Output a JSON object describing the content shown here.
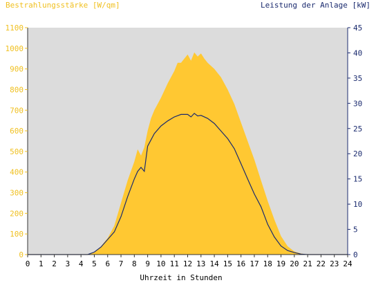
{
  "colors": {
    "irradiance": "#ffc832",
    "power": "#1a2a6e",
    "plot_background": "#dcdcdc",
    "left_axis": "#f0c020",
    "right_axis": "#1a2a6e"
  },
  "chart_data": {
    "type": "area",
    "title_left": "Bestrahlungsstärke [W/qm]",
    "title_right": "Leistung der Anlage [kW]",
    "xlabel": "Uhrzeit in Stunden",
    "xlim": [
      0,
      24
    ],
    "ylim_left": [
      0,
      1100
    ],
    "ylim_right": [
      0,
      45
    ],
    "x_ticks": [
      "0",
      "1",
      "2",
      "3",
      "4",
      "5",
      "6",
      "7",
      "8",
      "9",
      "10",
      "11",
      "12",
      "13",
      "14",
      "15",
      "16",
      "17",
      "18",
      "19",
      "20",
      "21",
      "22",
      "23",
      "24"
    ],
    "y_ticks_left": [
      "0",
      "100",
      "200",
      "300",
      "400",
      "500",
      "600",
      "700",
      "800",
      "900",
      "1000",
      "1100"
    ],
    "y_ticks_right": [
      "0",
      "5",
      "10",
      "15",
      "20",
      "25",
      "30",
      "35",
      "40",
      "45"
    ],
    "grid": false,
    "series": [
      {
        "name": "Bestrahlungsstärke",
        "axis": "left",
        "style": "filled-area",
        "x": [
          0,
          4.5,
          5,
          5.5,
          6,
          6.5,
          7,
          7.5,
          8,
          8.25,
          8.5,
          8.75,
          9,
          9.25,
          9.5,
          10,
          10.5,
          11,
          11.25,
          11.5,
          11.75,
          12,
          12.25,
          12.5,
          12.75,
          13,
          13.25,
          13.5,
          14,
          14.5,
          15,
          15.5,
          16,
          16.5,
          17,
          17.5,
          18,
          18.5,
          19,
          19.5,
          20,
          20.5,
          21,
          24
        ],
        "y": [
          0,
          0,
          10,
          40,
          80,
          140,
          250,
          360,
          450,
          510,
          480,
          520,
          600,
          660,
          700,
          760,
          830,
          890,
          930,
          930,
          950,
          970,
          940,
          980,
          960,
          975,
          950,
          930,
          900,
          860,
          800,
          730,
          640,
          550,
          460,
          360,
          260,
          170,
          90,
          40,
          15,
          5,
          0,
          0
        ]
      },
      {
        "name": "Leistung der Anlage",
        "axis": "right",
        "style": "line",
        "x": [
          0,
          4.5,
          5,
          5.5,
          6,
          6.5,
          7,
          7.5,
          8,
          8.25,
          8.5,
          8.75,
          9,
          9.5,
          10,
          10.5,
          11,
          11.5,
          12,
          12.25,
          12.5,
          12.75,
          13,
          13.5,
          14,
          14.5,
          15,
          15.5,
          16,
          16.5,
          17,
          17.5,
          18,
          18.5,
          19,
          19.5,
          20,
          20.5,
          21,
          24
        ],
        "y": [
          0,
          0,
          0.5,
          1.5,
          3,
          4.5,
          7.5,
          11.5,
          15,
          16.5,
          17.3,
          16.5,
          21.5,
          24,
          25.5,
          26.5,
          27.3,
          27.8,
          27.8,
          27.3,
          28,
          27.5,
          27.6,
          27,
          26,
          24.5,
          23,
          21,
          18,
          15,
          12,
          9.5,
          6,
          3.5,
          1.7,
          0.8,
          0.4,
          0.1,
          0,
          0
        ]
      }
    ]
  }
}
